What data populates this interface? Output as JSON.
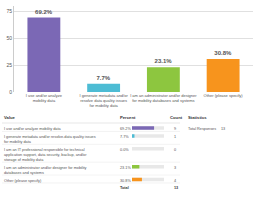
{
  "chart_data": [
    {
      "type": "bar",
      "categories": [
        "I use and/or analyze\nmobility data",
        "I generate metadata and/or\nresolve data quality issues\nfor mobility data",
        "I am an administrator and/or designer\nfor mobility databases and systems",
        "Other (please specify)"
      ],
      "values": [
        69.2,
        7.7,
        23.1,
        30.8
      ],
      "value_labels": [
        "69.2%",
        "7.7%",
        "23.1%",
        "30.8%"
      ],
      "data_labels": true,
      "colors": [
        "#7b68b5",
        "#4dbcd4",
        "#8dc63f",
        "#f7941d"
      ],
      "ylim": [
        0,
        80
      ],
      "yticks": [
        0,
        25,
        50,
        75
      ],
      "grid": true
    },
    {
      "type": "table",
      "columns": [
        "Value",
        "Percent",
        "Count",
        "Statistics"
      ],
      "categories": [
        "I use and/or analyze mobility data",
        "I generate metadata and/or resolve-data quality issues\nfor mobility data",
        "I am an IT professional responsible for technical\napplication support, data security, backup, and/or\nstorage of mobility data",
        "I am an administrator and/or designer for mobility\ndatabases and systems",
        "Other (please specify)"
      ],
      "values": [
        69.2,
        7.7,
        0.0,
        23.1,
        30.8
      ],
      "value_labels": [
        "69.2%",
        "7.7%",
        "0.0%",
        "23.1%",
        "30.8%"
      ],
      "counts": [
        9,
        1,
        0,
        3,
        4
      ],
      "bar_values": [
        0.69,
        0.077,
        0.0,
        0.23,
        0.31
      ],
      "colors": [
        "#7b68b5",
        "#4dbcd4",
        "#cccccc",
        "#8dc63f",
        "#f7941d"
      ],
      "xlim": [
        0,
        1
      ],
      "tick_labels": false,
      "annotations": [
        "Total Responses",
        "Total"
      ],
      "total": 13
    }
  ]
}
